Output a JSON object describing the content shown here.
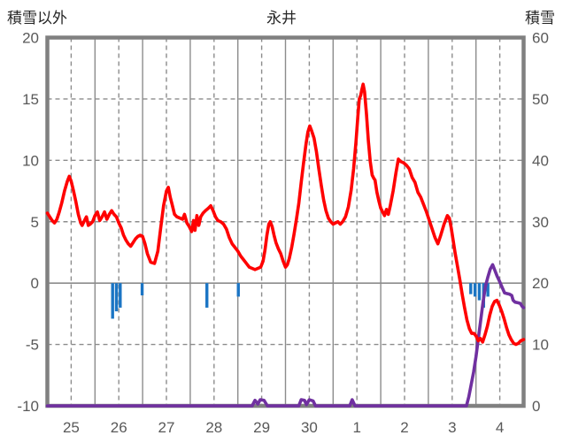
{
  "header": {
    "left_axis_title": "積雪以外",
    "chart_title": "永井",
    "right_axis_title": "積雪"
  },
  "colors": {
    "temperature_line": "#FF0000",
    "snow_depth_line": "#7030A0",
    "precipitation_bar": "#1B75C4",
    "grid": "#8C8C8C",
    "frame": "#808080",
    "tick_text": "#595959",
    "title_text": "#262626",
    "background": "#FFFFFF"
  },
  "chart_data": {
    "type": "line",
    "title": "永井",
    "legend": "none",
    "left_axis": {
      "label": "積雪以外",
      "range": [
        -10,
        20
      ],
      "ticks": [
        20,
        15,
        10,
        5,
        0,
        -5,
        -10
      ]
    },
    "right_axis": {
      "label": "積雪",
      "range": [
        0,
        60
      ],
      "ticks": [
        60,
        50,
        40,
        30,
        20,
        10,
        0
      ]
    },
    "x_axis": {
      "tick_labels": [
        "25",
        "26",
        "27",
        "28",
        "29",
        "30",
        "1",
        "2",
        "3",
        "4"
      ],
      "days_total": 10,
      "grid_note": "solid gridlines at day boundaries, dashed gridlines at day centers; horizontal dashed gridlines every 5 left-units, solid line at left 0"
    },
    "series": [
      {
        "name": "temperature-red",
        "axis": "left",
        "color": "#FF0000",
        "points": [
          [
            0.0,
            5.7
          ],
          [
            0.05,
            5.4
          ],
          [
            0.1,
            5.1
          ],
          [
            0.15,
            4.9
          ],
          [
            0.2,
            5.2
          ],
          [
            0.25,
            5.8
          ],
          [
            0.3,
            6.5
          ],
          [
            0.36,
            7.5
          ],
          [
            0.42,
            8.3
          ],
          [
            0.46,
            8.7
          ],
          [
            0.5,
            8.3
          ],
          [
            0.55,
            7.5
          ],
          [
            0.6,
            6.6
          ],
          [
            0.65,
            5.6
          ],
          [
            0.7,
            4.9
          ],
          [
            0.73,
            4.7
          ],
          [
            0.78,
            5.1
          ],
          [
            0.82,
            5.4
          ],
          [
            0.86,
            4.7
          ],
          [
            0.9,
            4.8
          ],
          [
            0.95,
            5.0
          ],
          [
            1.0,
            5.5
          ],
          [
            1.05,
            5.8
          ],
          [
            1.1,
            5.1
          ],
          [
            1.15,
            5.4
          ],
          [
            1.2,
            5.8
          ],
          [
            1.25,
            5.2
          ],
          [
            1.3,
            5.6
          ],
          [
            1.35,
            5.9
          ],
          [
            1.4,
            5.6
          ],
          [
            1.45,
            5.4
          ],
          [
            1.5,
            4.9
          ],
          [
            1.55,
            4.5
          ],
          [
            1.6,
            3.9
          ],
          [
            1.65,
            3.5
          ],
          [
            1.7,
            3.2
          ],
          [
            1.75,
            3.0
          ],
          [
            1.8,
            3.3
          ],
          [
            1.85,
            3.6
          ],
          [
            1.9,
            3.8
          ],
          [
            1.95,
            3.9
          ],
          [
            2.0,
            3.8
          ],
          [
            2.05,
            3.2
          ],
          [
            2.1,
            2.4
          ],
          [
            2.17,
            1.7
          ],
          [
            2.25,
            1.6
          ],
          [
            2.32,
            2.6
          ],
          [
            2.38,
            4.5
          ],
          [
            2.44,
            6.3
          ],
          [
            2.5,
            7.5
          ],
          [
            2.54,
            7.8
          ],
          [
            2.58,
            7.0
          ],
          [
            2.62,
            6.4
          ],
          [
            2.67,
            5.6
          ],
          [
            2.72,
            5.4
          ],
          [
            2.78,
            5.3
          ],
          [
            2.84,
            5.2
          ],
          [
            2.88,
            5.6
          ],
          [
            2.93,
            4.9
          ],
          [
            2.98,
            4.6
          ],
          [
            3.03,
            4.2
          ],
          [
            3.07,
            5.1
          ],
          [
            3.1,
            4.3
          ],
          [
            3.14,
            5.5
          ],
          [
            3.18,
            4.7
          ],
          [
            3.22,
            5.4
          ],
          [
            3.27,
            5.7
          ],
          [
            3.32,
            5.9
          ],
          [
            3.38,
            6.1
          ],
          [
            3.43,
            6.3
          ],
          [
            3.48,
            5.9
          ],
          [
            3.53,
            5.4
          ],
          [
            3.58,
            5.1
          ],
          [
            3.64,
            5.0
          ],
          [
            3.7,
            4.8
          ],
          [
            3.76,
            4.4
          ],
          [
            3.82,
            3.7
          ],
          [
            3.88,
            3.2
          ],
          [
            3.94,
            2.9
          ],
          [
            4.0,
            2.6
          ],
          [
            4.06,
            2.2
          ],
          [
            4.12,
            1.9
          ],
          [
            4.18,
            1.6
          ],
          [
            4.24,
            1.3
          ],
          [
            4.3,
            1.2
          ],
          [
            4.36,
            1.1
          ],
          [
            4.42,
            1.2
          ],
          [
            4.48,
            1.3
          ],
          [
            4.53,
            1.8
          ],
          [
            4.57,
            2.7
          ],
          [
            4.61,
            3.9
          ],
          [
            4.65,
            4.8
          ],
          [
            4.68,
            5.0
          ],
          [
            4.72,
            4.6
          ],
          [
            4.76,
            3.9
          ],
          [
            4.8,
            3.3
          ],
          [
            4.85,
            2.8
          ],
          [
            4.9,
            2.4
          ],
          [
            4.95,
            1.8
          ],
          [
            5.0,
            1.3
          ],
          [
            5.04,
            1.5
          ],
          [
            5.08,
            2.0
          ],
          [
            5.13,
            2.9
          ],
          [
            5.18,
            4.0
          ],
          [
            5.23,
            5.2
          ],
          [
            5.28,
            6.5
          ],
          [
            5.33,
            8.2
          ],
          [
            5.38,
            9.8
          ],
          [
            5.43,
            11.3
          ],
          [
            5.47,
            12.3
          ],
          [
            5.51,
            12.8
          ],
          [
            5.55,
            12.4
          ],
          [
            5.6,
            11.8
          ],
          [
            5.65,
            10.7
          ],
          [
            5.7,
            9.3
          ],
          [
            5.75,
            8.0
          ],
          [
            5.8,
            6.8
          ],
          [
            5.85,
            5.9
          ],
          [
            5.9,
            5.3
          ],
          [
            5.95,
            5.0
          ],
          [
            6.0,
            4.8
          ],
          [
            6.05,
            4.9
          ],
          [
            6.1,
            5.0
          ],
          [
            6.15,
            4.8
          ],
          [
            6.2,
            5.0
          ],
          [
            6.26,
            5.4
          ],
          [
            6.32,
            6.2
          ],
          [
            6.38,
            7.6
          ],
          [
            6.43,
            9.3
          ],
          [
            6.48,
            11.5
          ],
          [
            6.52,
            13.6
          ],
          [
            6.55,
            15.0
          ],
          [
            6.58,
            15.3
          ],
          [
            6.6,
            15.7
          ],
          [
            6.63,
            16.2
          ],
          [
            6.66,
            15.6
          ],
          [
            6.7,
            13.8
          ],
          [
            6.74,
            11.6
          ],
          [
            6.78,
            9.9
          ],
          [
            6.82,
            8.8
          ],
          [
            6.86,
            8.5
          ],
          [
            6.88,
            8.4
          ],
          [
            6.92,
            7.4
          ],
          [
            6.96,
            6.7
          ],
          [
            7.0,
            6.1
          ],
          [
            7.04,
            5.8
          ],
          [
            7.08,
            5.5
          ],
          [
            7.12,
            6.0
          ],
          [
            7.16,
            5.6
          ],
          [
            7.2,
            6.3
          ],
          [
            7.26,
            7.5
          ],
          [
            7.32,
            9.0
          ],
          [
            7.37,
            10.1
          ],
          [
            7.42,
            9.9
          ],
          [
            7.48,
            9.8
          ],
          [
            7.54,
            9.6
          ],
          [
            7.6,
            9.3
          ],
          [
            7.66,
            8.6
          ],
          [
            7.72,
            8.2
          ],
          [
            7.78,
            7.4
          ],
          [
            7.84,
            7.0
          ],
          [
            7.9,
            6.4
          ],
          [
            7.96,
            5.8
          ],
          [
            8.02,
            5.1
          ],
          [
            8.08,
            4.4
          ],
          [
            8.14,
            3.7
          ],
          [
            8.2,
            3.2
          ],
          [
            8.26,
            3.9
          ],
          [
            8.33,
            4.8
          ],
          [
            8.4,
            5.5
          ],
          [
            8.44,
            5.3
          ],
          [
            8.48,
            4.5
          ],
          [
            8.52,
            3.5
          ],
          [
            8.56,
            2.5
          ],
          [
            8.61,
            1.4
          ],
          [
            8.66,
            0.3
          ],
          [
            8.71,
            -0.9
          ],
          [
            8.76,
            -2.0
          ],
          [
            8.81,
            -3.0
          ],
          [
            8.86,
            -3.7
          ],
          [
            8.91,
            -4.1
          ],
          [
            8.96,
            -4.1
          ],
          [
            9.0,
            -4.3
          ],
          [
            9.05,
            -4.7
          ],
          [
            9.09,
            -4.5
          ],
          [
            9.14,
            -4.8
          ],
          [
            9.19,
            -4.2
          ],
          [
            9.24,
            -3.5
          ],
          [
            9.29,
            -2.6
          ],
          [
            9.34,
            -1.9
          ],
          [
            9.39,
            -1.5
          ],
          [
            9.44,
            -1.4
          ],
          [
            9.49,
            -1.8
          ],
          [
            9.54,
            -2.3
          ],
          [
            9.59,
            -2.9
          ],
          [
            9.64,
            -3.6
          ],
          [
            9.69,
            -4.2
          ],
          [
            9.74,
            -4.6
          ],
          [
            9.79,
            -4.9
          ],
          [
            9.84,
            -5.0
          ],
          [
            9.89,
            -4.9
          ],
          [
            9.94,
            -4.7
          ],
          [
            10.0,
            -4.6
          ]
        ]
      },
      {
        "name": "snow-depth-purple",
        "axis": "right",
        "color": "#7030A0",
        "points": [
          [
            0.0,
            0
          ],
          [
            4.3,
            0
          ],
          [
            4.36,
            0.9
          ],
          [
            4.42,
            0.3
          ],
          [
            4.47,
            1.0
          ],
          [
            4.55,
            0.9
          ],
          [
            4.62,
            0
          ],
          [
            5.28,
            0
          ],
          [
            5.33,
            1.0
          ],
          [
            5.4,
            0.9
          ],
          [
            5.44,
            0.2
          ],
          [
            5.5,
            1.0
          ],
          [
            5.58,
            0.8
          ],
          [
            5.63,
            0
          ],
          [
            6.35,
            0
          ],
          [
            6.4,
            1.0
          ],
          [
            6.46,
            0
          ],
          [
            8.8,
            0
          ],
          [
            8.85,
            1.5
          ],
          [
            8.9,
            3.5
          ],
          [
            8.95,
            5.5
          ],
          [
            9.0,
            8.0
          ],
          [
            9.05,
            11.0
          ],
          [
            9.1,
            14.0
          ],
          [
            9.15,
            17.0
          ],
          [
            9.2,
            19.5
          ],
          [
            9.25,
            21.0
          ],
          [
            9.3,
            22.3
          ],
          [
            9.35,
            23.0
          ],
          [
            9.4,
            22.0
          ],
          [
            9.44,
            21.2
          ],
          [
            9.5,
            20.2
          ],
          [
            9.55,
            19.3
          ],
          [
            9.6,
            18.4
          ],
          [
            9.65,
            18.3
          ],
          [
            9.7,
            18.2
          ],
          [
            9.75,
            18.0
          ],
          [
            9.78,
            17.2
          ],
          [
            9.82,
            16.9
          ],
          [
            9.88,
            16.8
          ],
          [
            9.93,
            16.7
          ],
          [
            9.97,
            16.2
          ],
          [
            10.0,
            16.0
          ]
        ]
      },
      {
        "name": "precipitation-blue-bars",
        "axis": "left",
        "color": "#1B75C4",
        "note": "short bars hanging downward from the left-axis 0 line; length in left-axis units",
        "bars": [
          [
            1.37,
            2.9
          ],
          [
            1.45,
            2.3
          ],
          [
            1.53,
            2.0
          ],
          [
            1.99,
            1.0
          ],
          [
            3.35,
            2.0
          ],
          [
            4.01,
            1.1
          ],
          [
            8.89,
            0.9
          ],
          [
            8.98,
            1.1
          ],
          [
            9.07,
            1.4
          ],
          [
            9.16,
            2.0
          ],
          [
            9.25,
            1.1
          ]
        ]
      }
    ]
  }
}
